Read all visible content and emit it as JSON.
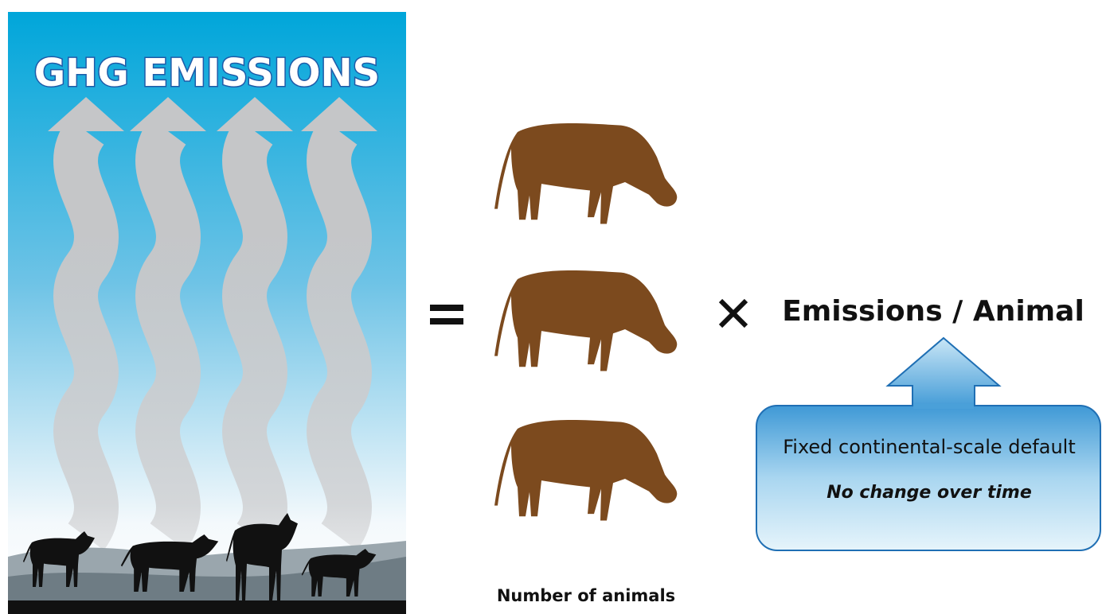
{
  "panel": {
    "title": "GHG EMISSIONS"
  },
  "equation": {
    "count_label": "Number of animals",
    "factor_label": "Emissions / Animal"
  },
  "callout": {
    "line1": "Fixed continental-scale default",
    "line2": "No change over time"
  }
}
